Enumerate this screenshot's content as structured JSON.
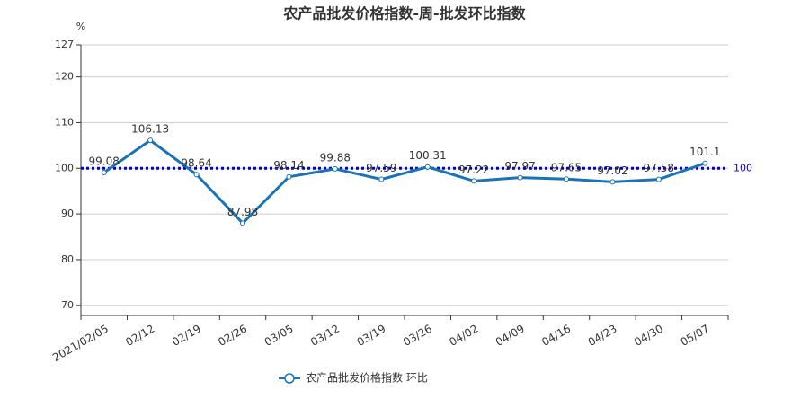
{
  "chart_data": {
    "type": "line",
    "title": "农产品批发价格指数-周-批发环比指数",
    "y_unit": "%",
    "categories": [
      "2021/02/05",
      "02/12",
      "02/19",
      "02/26",
      "03/05",
      "03/12",
      "03/19",
      "03/26",
      "04/02",
      "04/09",
      "04/16",
      "04/23",
      "04/30",
      "05/07"
    ],
    "series": [
      {
        "name": "农产品批发价格指数  环比",
        "color": "#1a73b8",
        "values": [
          99.08,
          106.13,
          98.64,
          87.98,
          98.14,
          99.88,
          97.59,
          100.31,
          97.22,
          97.97,
          97.65,
          97.02,
          97.58,
          101.1
        ]
      }
    ],
    "reference_line": {
      "value": 100,
      "color": "#0000cc"
    },
    "ylim": [
      67.8,
      127
    ],
    "yticks": [
      70,
      80,
      90,
      100,
      110,
      120,
      127
    ],
    "grid": true,
    "legend": "bottom"
  }
}
